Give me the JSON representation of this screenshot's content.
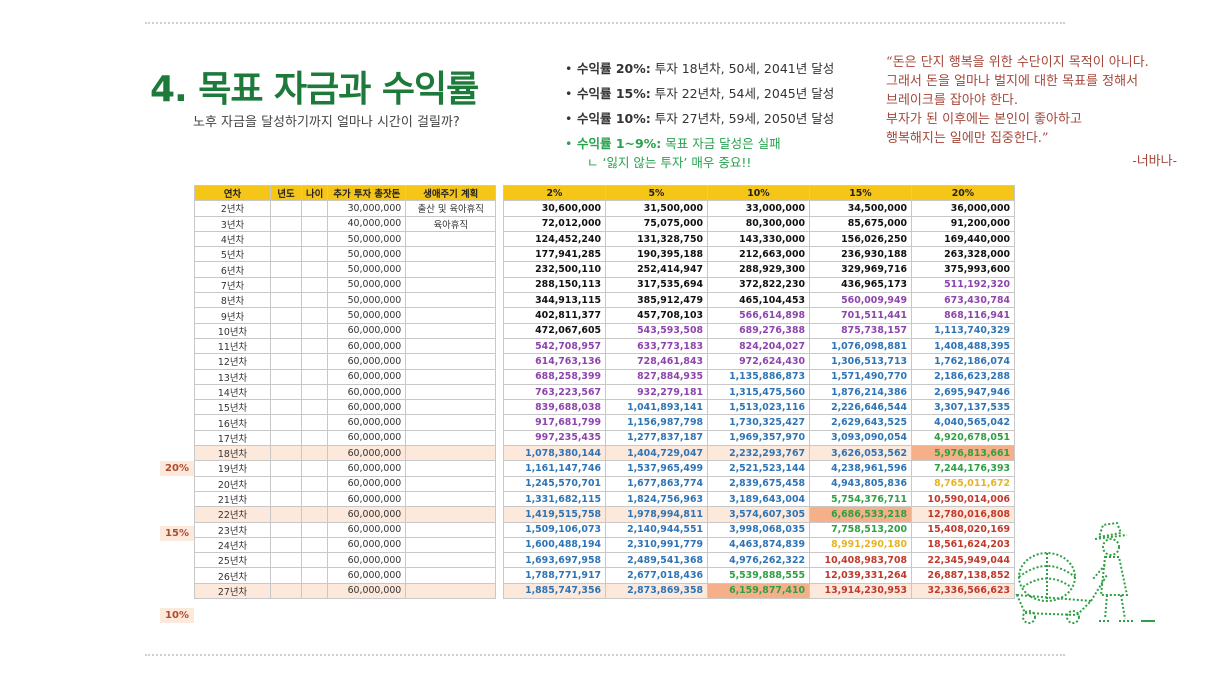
{
  "title": "4. 목표 자금과 수익률",
  "subtitle": "노후 자금을 달성하기까지 얼마나 시간이 걸릴까?",
  "bullets": [
    {
      "bold": "수익률 20%:",
      "text": " 투자 18년차, 50세, 2041년 달성"
    },
    {
      "bold": "수익률 15%:",
      "text": " 투자 22년차, 54세, 2045년 달성"
    },
    {
      "bold": "수익률 10%:",
      "text": " 투자 27년차, 59세, 2050년 달성"
    }
  ],
  "fail_bullet": {
    "bold": "수익률 1~9%:",
    "text": " 목표 자금 달성은 실패"
  },
  "fail_sub": "ㄴ ‘잃지 않는 투자’ 매우 중요!!",
  "quote_lines": [
    "“돈은 단지 행복을 위한 수단이지 목적이 아니다.",
    "그래서 돈을 얼마나 벌지에 대한 목표를 정해서",
    "브레이크를 잡아야 한다.",
    "부자가 된 이후에는 본인이 좋아하고",
    "행복해지는 일에만 집중한다.”"
  ],
  "quote_author": "-너바나-",
  "left_headers": [
    "연차",
    "년도",
    "나이",
    "추가 투자 총잣돈",
    "생애주기 계획"
  ],
  "right_headers": [
    "2%",
    "5%",
    "10%",
    "15%",
    "20%"
  ],
  "markers": [
    {
      "label": "20%",
      "row": 16
    },
    {
      "label": "15%",
      "row": 20
    },
    {
      "label": "10%",
      "row": 25
    }
  ],
  "colors": {
    "black": "#111111",
    "purple": "#8e44ad",
    "blue": "#2e74b5",
    "green": "#2ea043",
    "yellow": "#e6b422",
    "red": "#c0392b",
    "accent": "#1e7a3a"
  },
  "rows": [
    {
      "year": "2년차",
      "amount": "30,000,000",
      "plan": "출산 및 육아휴직",
      "v": [
        "30,600,000",
        "31,500,000",
        "33,000,000",
        "34,500,000",
        "36,000,000"
      ],
      "c": [
        "black",
        "black",
        "black",
        "black",
        "black"
      ]
    },
    {
      "year": "3년차",
      "amount": "40,000,000",
      "plan": "육아휴직",
      "v": [
        "72,012,000",
        "75,075,000",
        "80,300,000",
        "85,675,000",
        "91,200,000"
      ],
      "c": [
        "black",
        "black",
        "black",
        "black",
        "black"
      ]
    },
    {
      "year": "4년차",
      "amount": "50,000,000",
      "plan": "",
      "v": [
        "124,452,240",
        "131,328,750",
        "143,330,000",
        "156,026,250",
        "169,440,000"
      ],
      "c": [
        "black",
        "black",
        "black",
        "black",
        "black"
      ]
    },
    {
      "year": "5년차",
      "amount": "50,000,000",
      "plan": "",
      "v": [
        "177,941,285",
        "190,395,188",
        "212,663,000",
        "236,930,188",
        "263,328,000"
      ],
      "c": [
        "black",
        "black",
        "black",
        "black",
        "black"
      ]
    },
    {
      "year": "6년차",
      "amount": "50,000,000",
      "plan": "",
      "v": [
        "232,500,110",
        "252,414,947",
        "288,929,300",
        "329,969,716",
        "375,993,600"
      ],
      "c": [
        "black",
        "black",
        "black",
        "black",
        "black"
      ]
    },
    {
      "year": "7년차",
      "amount": "50,000,000",
      "plan": "",
      "v": [
        "288,150,113",
        "317,535,694",
        "372,822,230",
        "436,965,173",
        "511,192,320"
      ],
      "c": [
        "black",
        "black",
        "black",
        "black",
        "purple"
      ]
    },
    {
      "year": "8년차",
      "amount": "50,000,000",
      "plan": "",
      "v": [
        "344,913,115",
        "385,912,479",
        "465,104,453",
        "560,009,949",
        "673,430,784"
      ],
      "c": [
        "black",
        "black",
        "black",
        "purple",
        "purple"
      ]
    },
    {
      "year": "9년차",
      "amount": "50,000,000",
      "plan": "",
      "v": [
        "402,811,377",
        "457,708,103",
        "566,614,898",
        "701,511,441",
        "868,116,941"
      ],
      "c": [
        "black",
        "black",
        "purple",
        "purple",
        "purple"
      ]
    },
    {
      "year": "10년차",
      "amount": "60,000,000",
      "plan": "",
      "v": [
        "472,067,605",
        "543,593,508",
        "689,276,388",
        "875,738,157",
        "1,113,740,329"
      ],
      "c": [
        "black",
        "purple",
        "purple",
        "purple",
        "blue"
      ]
    },
    {
      "year": "11년차",
      "amount": "60,000,000",
      "plan": "",
      "v": [
        "542,708,957",
        "633,773,183",
        "824,204,027",
        "1,076,098,881",
        "1,408,488,395"
      ],
      "c": [
        "purple",
        "purple",
        "purple",
        "blue",
        "blue"
      ]
    },
    {
      "year": "12년차",
      "amount": "60,000,000",
      "plan": "",
      "v": [
        "614,763,136",
        "728,461,843",
        "972,624,430",
        "1,306,513,713",
        "1,762,186,074"
      ],
      "c": [
        "purple",
        "purple",
        "purple",
        "blue",
        "blue"
      ]
    },
    {
      "year": "13년차",
      "amount": "60,000,000",
      "plan": "",
      "v": [
        "688,258,399",
        "827,884,935",
        "1,135,886,873",
        "1,571,490,770",
        "2,186,623,288"
      ],
      "c": [
        "purple",
        "purple",
        "blue",
        "blue",
        "blue"
      ]
    },
    {
      "year": "14년차",
      "amount": "60,000,000",
      "plan": "",
      "v": [
        "763,223,567",
        "932,279,181",
        "1,315,475,560",
        "1,876,214,386",
        "2,695,947,946"
      ],
      "c": [
        "purple",
        "purple",
        "blue",
        "blue",
        "blue"
      ]
    },
    {
      "year": "15년차",
      "amount": "60,000,000",
      "plan": "",
      "v": [
        "839,688,038",
        "1,041,893,141",
        "1,513,023,116",
        "2,226,646,544",
        "3,307,137,535"
      ],
      "c": [
        "purple",
        "blue",
        "blue",
        "blue",
        "blue"
      ]
    },
    {
      "year": "16년차",
      "amount": "60,000,000",
      "plan": "",
      "v": [
        "917,681,799",
        "1,156,987,798",
        "1,730,325,427",
        "2,629,643,525",
        "4,040,565,042"
      ],
      "c": [
        "purple",
        "blue",
        "blue",
        "blue",
        "blue"
      ]
    },
    {
      "year": "17년차",
      "amount": "60,000,000",
      "plan": "",
      "v": [
        "997,235,435",
        "1,277,837,187",
        "1,969,357,970",
        "3,093,090,054",
        "4,920,678,051"
      ],
      "c": [
        "purple",
        "blue",
        "blue",
        "blue",
        "green"
      ]
    },
    {
      "year": "18년차",
      "amount": "60,000,000",
      "plan": "",
      "v": [
        "1,078,380,144",
        "1,404,729,047",
        "2,232,293,767",
        "3,626,053,562",
        "5,976,813,661"
      ],
      "c": [
        "blue",
        "blue",
        "blue",
        "blue",
        "green"
      ]
    },
    {
      "year": "19년차",
      "amount": "60,000,000",
      "plan": "",
      "v": [
        "1,161,147,746",
        "1,537,965,499",
        "2,521,523,144",
        "4,238,961,596",
        "7,244,176,393"
      ],
      "c": [
        "blue",
        "blue",
        "blue",
        "blue",
        "green"
      ]
    },
    {
      "year": "20년차",
      "amount": "60,000,000",
      "plan": "",
      "v": [
        "1,245,570,701",
        "1,677,863,774",
        "2,839,675,458",
        "4,943,805,836",
        "8,765,011,672"
      ],
      "c": [
        "blue",
        "blue",
        "blue",
        "blue",
        "yellow"
      ]
    },
    {
      "year": "21년차",
      "amount": "60,000,000",
      "plan": "",
      "v": [
        "1,331,682,115",
        "1,824,756,963",
        "3,189,643,004",
        "5,754,376,711",
        "10,590,014,006"
      ],
      "c": [
        "blue",
        "blue",
        "blue",
        "green",
        "red"
      ]
    },
    {
      "year": "22년차",
      "amount": "60,000,000",
      "plan": "",
      "v": [
        "1,419,515,758",
        "1,978,994,811",
        "3,574,607,305",
        "6,686,533,218",
        "12,780,016,808"
      ],
      "c": [
        "blue",
        "blue",
        "blue",
        "green",
        "red"
      ]
    },
    {
      "year": "23년차",
      "amount": "60,000,000",
      "plan": "",
      "v": [
        "1,509,106,073",
        "2,140,944,551",
        "3,998,068,035",
        "7,758,513,200",
        "15,408,020,169"
      ],
      "c": [
        "blue",
        "blue",
        "blue",
        "green",
        "red"
      ]
    },
    {
      "year": "24년차",
      "amount": "60,000,000",
      "plan": "",
      "v": [
        "1,600,488,194",
        "2,310,991,779",
        "4,463,874,839",
        "8,991,290,180",
        "18,561,624,203"
      ],
      "c": [
        "blue",
        "blue",
        "blue",
        "yellow",
        "red"
      ]
    },
    {
      "year": "25년차",
      "amount": "60,000,000",
      "plan": "",
      "v": [
        "1,693,697,958",
        "2,489,541,368",
        "4,976,262,322",
        "10,408,983,708",
        "22,345,949,044"
      ],
      "c": [
        "blue",
        "blue",
        "blue",
        "red",
        "red"
      ]
    },
    {
      "year": "26년차",
      "amount": "60,000,000",
      "plan": "",
      "v": [
        "1,788,771,917",
        "2,677,018,436",
        "5,539,888,555",
        "12,039,331,264",
        "26,887,138,852"
      ],
      "c": [
        "blue",
        "blue",
        "green",
        "red",
        "red"
      ]
    },
    {
      "year": "27년차",
      "amount": "60,000,000",
      "plan": "",
      "v": [
        "1,885,747,356",
        "2,873,869,358",
        "6,159,877,410",
        "13,914,230,953",
        "32,336,566,623"
      ],
      "c": [
        "blue",
        "blue",
        "green",
        "red",
        "red"
      ]
    }
  ]
}
